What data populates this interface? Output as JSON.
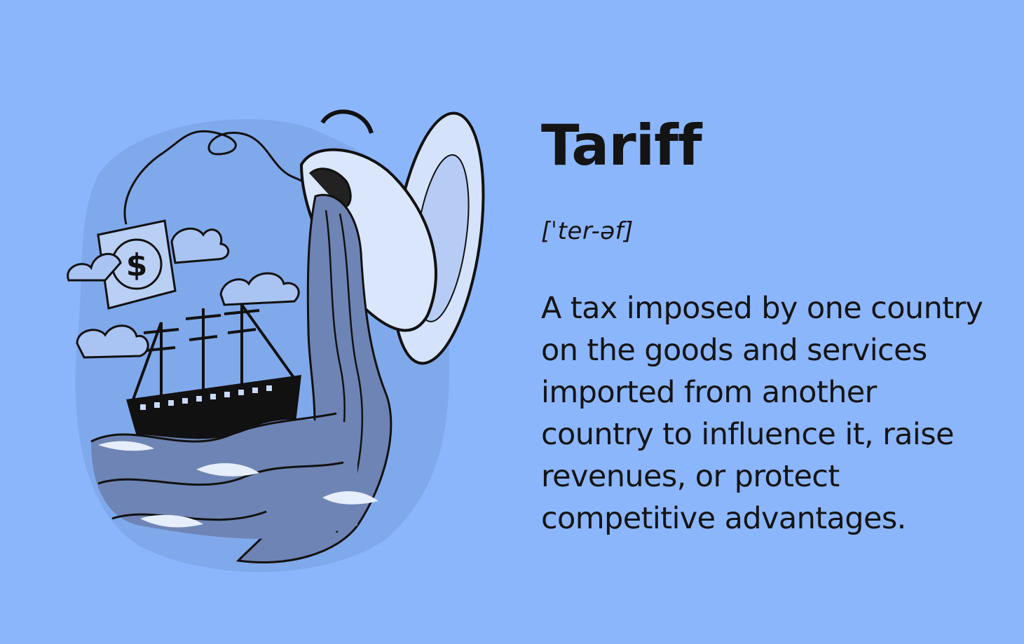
{
  "term": "Tariff",
  "pronunciation": "[ˈter-əf]",
  "definition": "A tax imposed by one country on the goods and services imported from another country to influence it, raise revenues, or protect competitive advantages.",
  "illustration": {
    "tag_symbol": "$",
    "icons": [
      "teacup-icon",
      "saucer-icon",
      "tea-tag-icon",
      "ship-icon",
      "cloud-icon",
      "wave-icon"
    ]
  },
  "colors": {
    "background": "#8bb6fc",
    "text": "#141414",
    "ink": "#111111",
    "illustration_light": "#cfe0fb",
    "water": "#6e84b4"
  }
}
